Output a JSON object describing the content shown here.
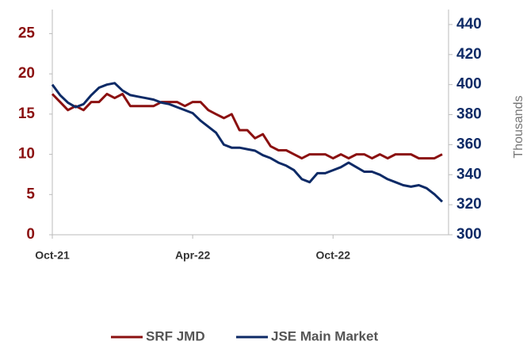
{
  "chart_data": {
    "type": "line",
    "categories": [
      "Oct-21",
      null,
      null,
      null,
      null,
      null,
      null,
      null,
      null,
      null,
      null,
      null,
      null,
      null,
      null,
      null,
      null,
      null,
      "Apr-22",
      null,
      null,
      null,
      null,
      null,
      null,
      null,
      null,
      null,
      null,
      null,
      null,
      null,
      null,
      null,
      null,
      null,
      "Oct-22",
      null,
      null,
      null,
      null,
      null,
      null,
      null,
      null,
      null,
      null,
      null,
      null,
      null,
      null
    ],
    "series": [
      {
        "name": "SRF JMD",
        "color": "#8b1010",
        "axis": "y",
        "values": [
          17.5,
          16.5,
          15.5,
          16,
          15.5,
          16.5,
          16.5,
          17.5,
          17,
          17.5,
          16,
          16,
          16,
          16,
          16.5,
          16.5,
          16.5,
          16,
          16.5,
          16.5,
          15.5,
          15,
          14.5,
          15,
          13,
          13,
          12,
          12.5,
          11,
          10.5,
          10.5,
          10,
          9.5,
          10,
          10,
          10,
          9.5,
          10,
          9.5,
          10,
          10,
          9.5,
          10,
          9.5,
          10,
          10,
          10,
          9.5,
          9.5,
          9.5,
          10
        ]
      },
      {
        "name": "JSE Main Market",
        "color": "#0d2a66",
        "axis": "y2",
        "values": [
          400,
          393,
          388,
          385,
          387,
          393,
          398,
          400,
          401,
          396,
          393,
          392,
          391,
          390,
          388,
          387,
          385,
          383,
          381,
          376,
          372,
          368,
          360,
          358,
          358,
          357,
          356,
          353,
          351,
          348,
          346,
          343,
          337,
          335,
          341,
          341,
          343,
          345,
          348,
          345,
          342,
          342,
          340,
          337,
          335,
          333,
          332,
          333,
          331,
          327,
          322
        ]
      }
    ],
    "ylim": [
      0,
      28
    ],
    "yticks": [
      0,
      5,
      10,
      15,
      20,
      25
    ],
    "y2lim": [
      300,
      450
    ],
    "y2ticks": [
      300,
      320,
      340,
      360,
      380,
      400,
      420,
      440
    ],
    "y2label": "Thousands",
    "legend": "bottom",
    "grid": false
  }
}
